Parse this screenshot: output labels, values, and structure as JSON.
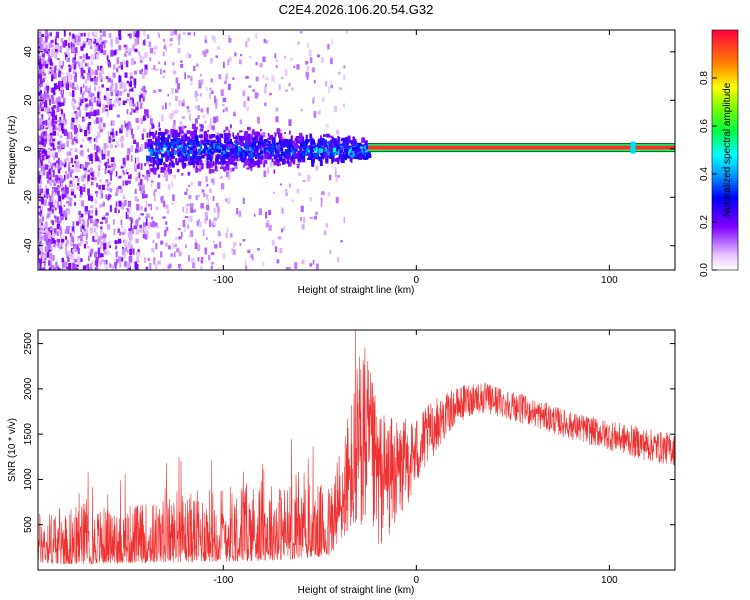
{
  "title": "C2E4.2026.106.20.54.G32",
  "chart_data": [
    {
      "type": "heatmap",
      "xlabel": "Height of straight line (km)",
      "ylabel": "Frequency (Hz)",
      "xlim": [
        -196,
        134
      ],
      "ylim": [
        -50,
        49
      ],
      "xticks": [
        -100,
        0,
        100
      ],
      "yticks": [
        -40,
        -20,
        0,
        20,
        40
      ],
      "colorbar": {
        "label": "Normalized spectral amplitude",
        "range": [
          0,
          1
        ],
        "ticks": [
          "0.0",
          "0.2",
          "0.4",
          "0.6",
          "0.8"
        ],
        "tick_values": [
          0.0,
          0.2,
          0.4,
          0.6,
          0.8
        ]
      },
      "description_points": {
        "noise_region_x": [
          -196,
          -55
        ],
        "cluster_x": [
          -140,
          -25
        ],
        "carrier_x": [
          -25,
          134
        ],
        "carrier_freq": 0.5,
        "carrier_amplitude": 0.95
      }
    },
    {
      "type": "line",
      "xlabel": "Height of straight line (km)",
      "ylabel": "SNR (10 * v/v)",
      "xlim": [
        -196,
        134
      ],
      "ylim": [
        0,
        2650
      ],
      "xticks": [
        -100,
        0,
        100
      ],
      "yticks": [
        500,
        1000,
        1500,
        2000,
        2500
      ],
      "color": "#f03030",
      "envelope": {
        "x": [
          -196,
          -180,
          -160,
          -140,
          -120,
          -100,
          -80,
          -60,
          -45,
          -33,
          -28,
          -20,
          -10,
          0,
          10,
          20,
          30,
          40,
          50,
          60,
          80,
          100,
          120,
          134
        ],
        "lower": [
          80,
          60,
          70,
          80,
          90,
          90,
          100,
          120,
          150,
          500,
          400,
          200,
          500,
          900,
          1300,
          1600,
          1720,
          1700,
          1650,
          1580,
          1440,
          1320,
          1200,
          1150
        ],
        "upper": [
          650,
          700,
          700,
          750,
          850,
          950,
          1000,
          950,
          950,
          2000,
          2650,
          1800,
          1650,
          1700,
          1900,
          2000,
          2100,
          2050,
          1980,
          1900,
          1750,
          1650,
          1560,
          1500
        ]
      }
    }
  ]
}
